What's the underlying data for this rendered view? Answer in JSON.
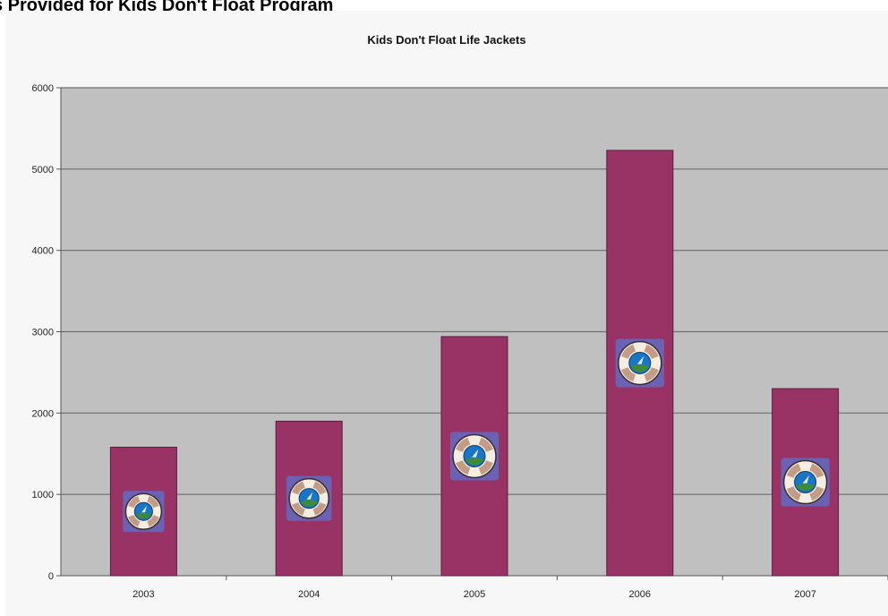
{
  "page": {
    "heading": "s Provided for Kids Don't Float Program"
  },
  "chart_data": {
    "type": "bar",
    "title": "Kids Don't Float Life Jackets",
    "xlabel": "",
    "ylabel": "",
    "categories": [
      "2003",
      "2004",
      "2005",
      "2006",
      "2007"
    ],
    "values": [
      1580,
      1900,
      2940,
      5230,
      2300
    ],
    "ylim": [
      0,
      6000
    ],
    "yticks": [
      0,
      1000,
      2000,
      3000,
      4000,
      5000,
      6000
    ],
    "grid": true,
    "legend": "none",
    "bar_marker_icon": "life-ring-icon",
    "colors": {
      "bar": "#993366",
      "bar_stroke": "#5a1e3c",
      "plot_background": "#c0c0c0",
      "chart_background": "#f7f7f7",
      "gridline": "#6e6e6e",
      "icon_frame": "#6a63b5",
      "icon_ring_light": "#f3ede2",
      "icon_ring_dark": "#9a5a3c",
      "icon_center": "#1a76c4",
      "icon_grass": "#3c8a3c"
    }
  }
}
